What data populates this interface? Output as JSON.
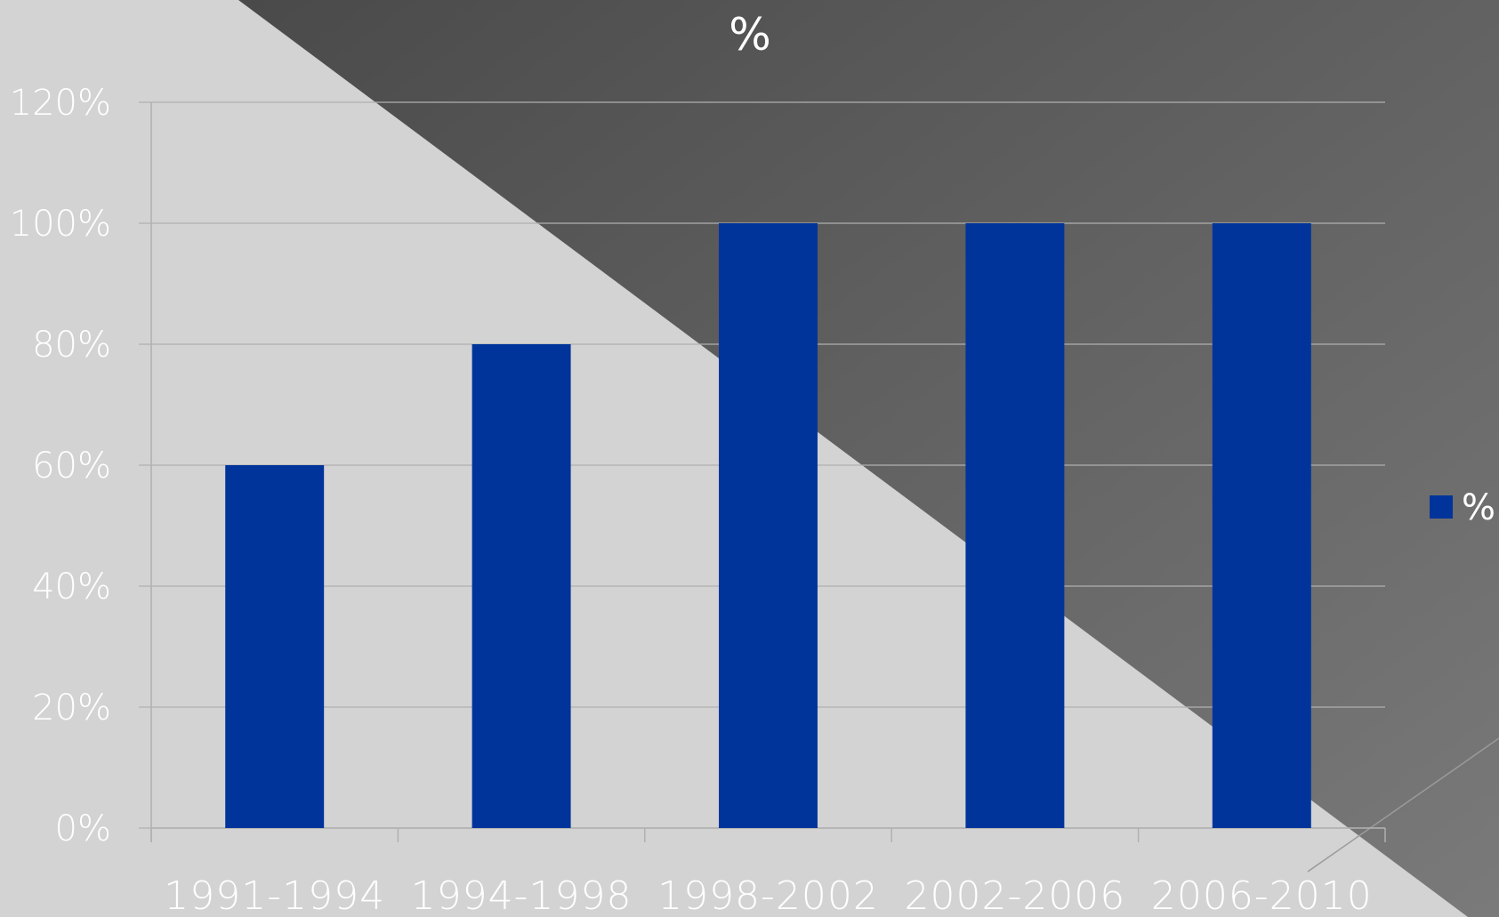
{
  "chart_data": {
    "type": "bar",
    "title": "%",
    "categories": [
      "1991-1994",
      "1994-1998",
      "1998-2002",
      "2002-2006",
      "2006-2010"
    ],
    "series": [
      {
        "name": "%",
        "values": [
          0.6,
          0.8,
          1.0,
          1.0,
          1.0
        ]
      }
    ],
    "ylim": [
      0,
      1.2
    ],
    "yticks": [
      "0%",
      "20%",
      "40%",
      "60%",
      "80%",
      "100%",
      "120%"
    ],
    "xlabel": "",
    "ylabel": "",
    "grid": true,
    "legend_position": "right"
  },
  "colors": {
    "bar": "#00349b",
    "background_light": "#d3d3d3",
    "background_dark": "#555555",
    "text": "#ffffff",
    "grid": "#b0b0b0"
  }
}
